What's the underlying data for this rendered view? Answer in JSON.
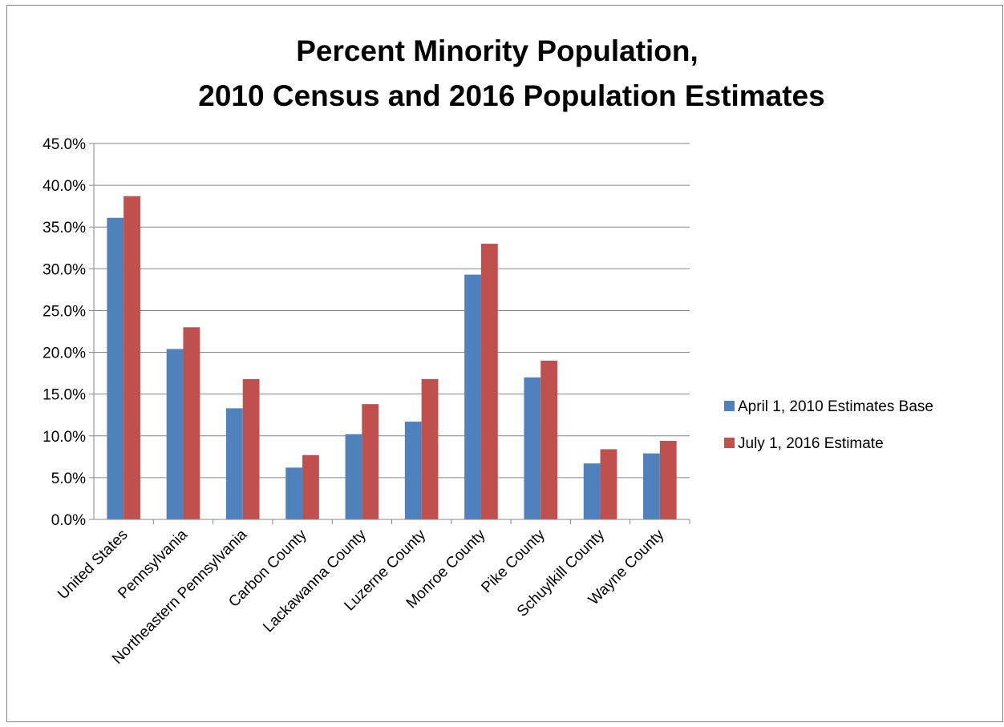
{
  "chart_data": {
    "type": "bar",
    "title_lines": [
      "Percent Minority Population,",
      "2010 Census and 2016 Population Estimates"
    ],
    "xlabel": "",
    "ylabel": "",
    "categories": [
      "United States",
      "Pennsylvania",
      "Northeastern Pennsylvania",
      "Carbon County",
      "Lackawanna County",
      "Luzerne County",
      "Monroe County",
      "Pike County",
      "Schuylkill County",
      "Wayne County"
    ],
    "series": [
      {
        "name": "April 1, 2010 Estimates Base",
        "color": "#4f81bd",
        "values": [
          36.1,
          20.4,
          13.3,
          6.2,
          10.2,
          11.7,
          29.3,
          17.0,
          6.7,
          7.9
        ]
      },
      {
        "name": "July 1, 2016 Estimate",
        "color": "#c0504d",
        "values": [
          38.7,
          23.0,
          16.8,
          7.7,
          13.8,
          16.8,
          33.0,
          19.0,
          8.4,
          9.4
        ]
      }
    ],
    "ylim": [
      0,
      45
    ],
    "ytick_step": 5,
    "ytick_labels": [
      "0.0%",
      "5.0%",
      "10.0%",
      "15.0%",
      "20.0%",
      "25.0%",
      "30.0%",
      "35.0%",
      "40.0%",
      "45.0%"
    ],
    "grid": true,
    "gridline_color": "#868686",
    "legend_position": "right"
  }
}
